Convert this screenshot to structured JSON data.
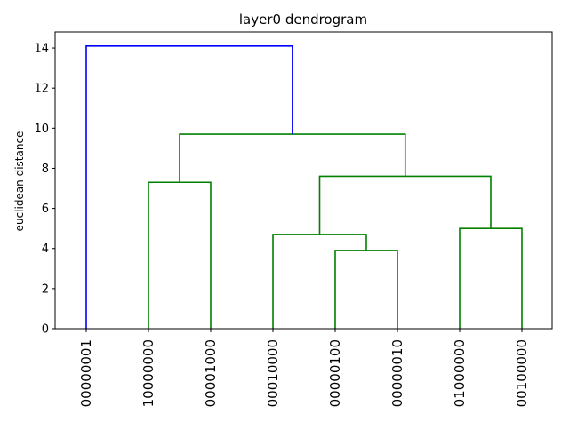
{
  "chart_data": {
    "type": "dendrogram",
    "title": "layer0 dendrogram",
    "xlabel": "",
    "ylabel": "euclidean distance",
    "ylim": [
      0,
      14.8
    ],
    "yticks": [
      0,
      2,
      4,
      6,
      8,
      10,
      12,
      14
    ],
    "leaves": [
      "00000001",
      "10000000",
      "00001000",
      "00010000",
      "00000100",
      "00000010",
      "01000000",
      "00100000"
    ],
    "colors": {
      "root": "#0000ff",
      "cluster": "#008000"
    },
    "links": [
      {
        "left": 4,
        "right": 5,
        "height": 3.9,
        "color": "cluster"
      },
      {
        "left": 3,
        "right": "4+5",
        "height": 4.7,
        "color": "cluster"
      },
      {
        "left": 6,
        "right": 7,
        "height": 5.0,
        "color": "cluster"
      },
      {
        "left": "3+4+5",
        "right": "6+7",
        "height": 7.6,
        "color": "cluster"
      },
      {
        "left": 1,
        "right": 2,
        "height": 7.3,
        "color": "cluster"
      },
      {
        "left": "1+2",
        "right": "3..7",
        "height": 9.7,
        "color": "cluster"
      },
      {
        "left": 0,
        "right": "1..7",
        "height": 14.1,
        "color": "root"
      }
    ]
  }
}
